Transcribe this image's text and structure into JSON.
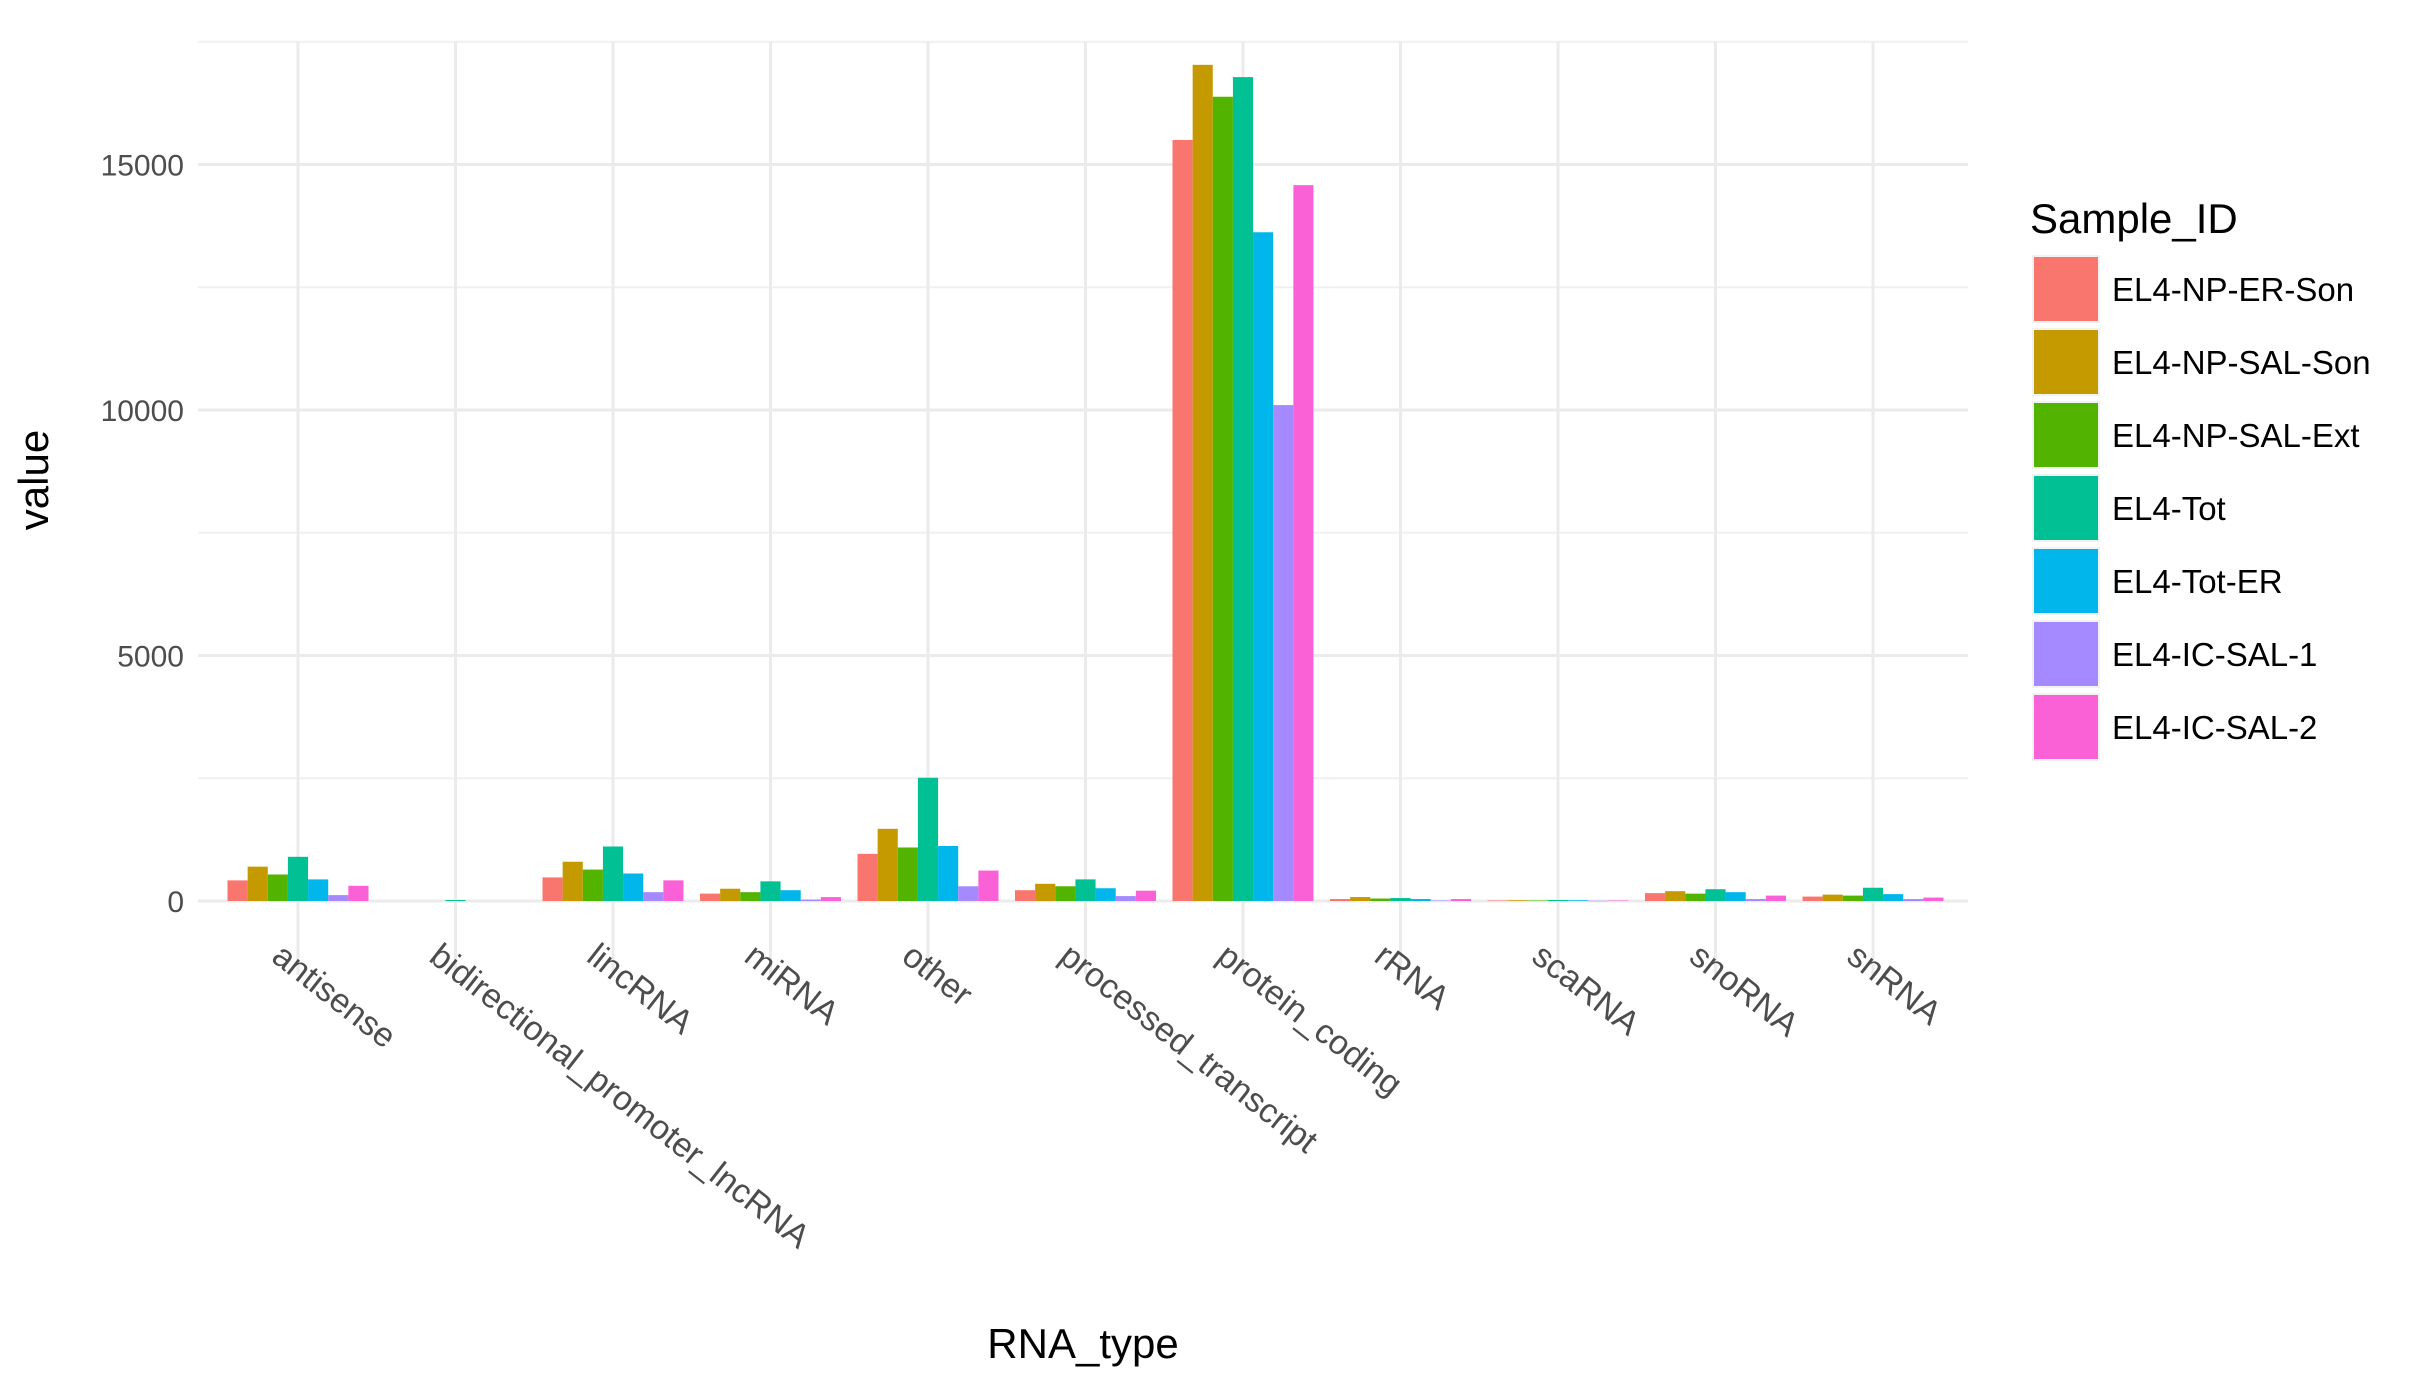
{
  "chart_data": {
    "type": "bar",
    "xlabel": "RNA_type",
    "ylabel": "value",
    "ylim": [
      -1500,
      17500
    ],
    "yticks": [
      0,
      5000,
      10000,
      15000
    ],
    "ytick_labels": [
      "0",
      "5000",
      "10000",
      "15000"
    ],
    "grid": true,
    "legend": {
      "title": "Sample_ID",
      "position": "right"
    },
    "categories": [
      "antisense",
      "bidirectional_promoter_lncRNA",
      "lincRNA",
      "miRNA",
      "other",
      "processed_transcript",
      "protein_coding",
      "rRNA",
      "scaRNA",
      "snoRNA",
      "snRNA"
    ],
    "series": [
      {
        "name": "EL4-NP-ER-Son",
        "color": "#F8766D",
        "values": [
          420,
          0,
          480,
          150,
          960,
          220,
          15500,
          40,
          10,
          160,
          90
        ]
      },
      {
        "name": "EL4-NP-SAL-Son",
        "color": "#C49A00",
        "values": [
          700,
          0,
          800,
          250,
          1470,
          350,
          17030,
          80,
          15,
          200,
          130
        ]
      },
      {
        "name": "EL4-NP-SAL-Ext",
        "color": "#53B400",
        "values": [
          540,
          0,
          640,
          180,
          1090,
          300,
          16380,
          50,
          10,
          150,
          110
        ]
      },
      {
        "name": "EL4-Tot",
        "color": "#00C094",
        "values": [
          900,
          20,
          1110,
          400,
          2510,
          440,
          16780,
          60,
          20,
          240,
          270
        ]
      },
      {
        "name": "EL4-Tot-ER",
        "color": "#00B6EB",
        "values": [
          440,
          0,
          560,
          220,
          1120,
          260,
          13620,
          40,
          15,
          180,
          140
        ]
      },
      {
        "name": "EL4-IC-SAL-1",
        "color": "#A58AFF",
        "values": [
          120,
          0,
          180,
          30,
          300,
          100,
          10100,
          10,
          5,
          40,
          40
        ]
      },
      {
        "name": "EL4-IC-SAL-2",
        "color": "#FB61D7",
        "values": [
          310,
          0,
          420,
          80,
          620,
          210,
          14580,
          40,
          10,
          110,
          70
        ]
      }
    ]
  }
}
